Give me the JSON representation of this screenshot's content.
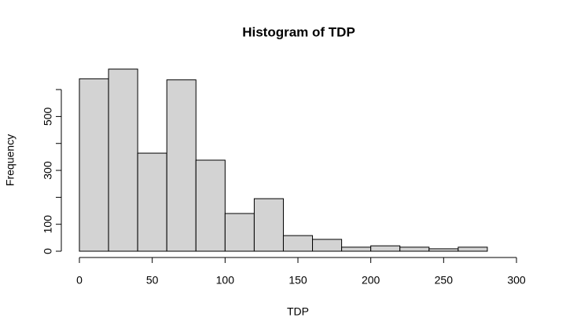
{
  "chart_data": {
    "type": "histogram",
    "title": "Histogram of TDP",
    "x_label": "TDP",
    "y_label": "Frequency",
    "bins": [
      0,
      20,
      40,
      60,
      80,
      100,
      120,
      140,
      160,
      180,
      200,
      220,
      240,
      260,
      280,
      300
    ],
    "counts": [
      640,
      676,
      364,
      636,
      338,
      140,
      195,
      58,
      44,
      15,
      20,
      15,
      9,
      15,
      0
    ],
    "color": "#d3d3d3",
    "xlim": [
      0,
      300
    ],
    "xticks": [
      0,
      50,
      100,
      150,
      200,
      250,
      300
    ],
    "ylim": [
      0,
      676
    ],
    "yticks": [
      0,
      100,
      300,
      500
    ],
    "yticks_unlabeled": [
      200,
      400,
      600
    ]
  }
}
